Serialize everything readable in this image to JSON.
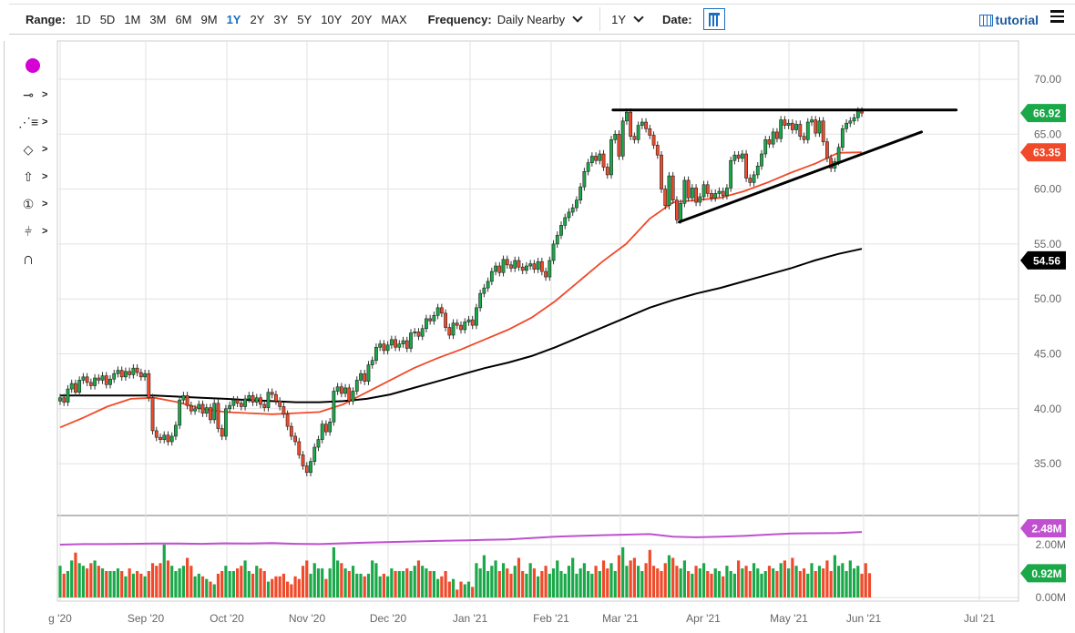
{
  "toolbar": {
    "range_label": "Range:",
    "ranges": [
      "1D",
      "5D",
      "1M",
      "3M",
      "6M",
      "9M",
      "1Y",
      "2Y",
      "3Y",
      "5Y",
      "10Y",
      "20Y",
      "MAX"
    ],
    "active_range": "1Y",
    "frequency_label": "Frequency:",
    "frequency_value": "Daily Nearby",
    "period_value": "1Y",
    "date_label": "Date:",
    "tutorial_label": "tutorial"
  },
  "sidebar": {
    "color_swatch": "#d400d4",
    "tools": [
      "line-segment-icon",
      "fibonacci-icon",
      "shape-icon",
      "arrow-up-icon",
      "numbered-annotation-icon",
      "measure-icon",
      "magnet-icon"
    ]
  },
  "chart_data": {
    "type": "candlestick",
    "x_ticks": [
      "g '20",
      "Sep '20",
      "Oct '20",
      "Nov '20",
      "Dec '20",
      "Jan '21",
      "Feb '21",
      "Mar '21",
      "Apr '21",
      "May '21",
      "Jun '21",
      "Jul '21"
    ],
    "y_ticks": [
      "35.00",
      "40.00",
      "45.00",
      "50.00",
      "55.00",
      "60.00",
      "65.00",
      "70.00"
    ],
    "ylim": [
      31.5,
      73.5
    ],
    "volume_ticks": [
      "0.00M",
      "2.00M"
    ],
    "volume_ylim": [
      0,
      3.2
    ],
    "grid": true,
    "colors": {
      "up": "#1aa849",
      "down": "#f04a2a",
      "ma50": "#f04a2a",
      "ma200": "#000000",
      "vol_ma": "#c050d0"
    },
    "closes": [
      41.0,
      40.6,
      41.8,
      42.3,
      41.5,
      42.6,
      42.9,
      42.4,
      42.1,
      42.8,
      42.6,
      43.0,
      42.2,
      42.7,
      43.2,
      43.5,
      42.9,
      43.4,
      43.1,
      43.7,
      43.3,
      42.9,
      43.2,
      41.0,
      38.0,
      37.4,
      37.2,
      37.6,
      37.0,
      37.5,
      38.5,
      40.8,
      41.2,
      40.3,
      39.8,
      40.0,
      40.4,
      39.6,
      40.1,
      39.0,
      40.5,
      38.2,
      37.5,
      40.0,
      40.3,
      40.8,
      40.5,
      40.2,
      40.9,
      41.2,
      40.6,
      41.0,
      40.4,
      40.1,
      41.5,
      41.3,
      40.7,
      40.2,
      39.5,
      38.4,
      37.5,
      37.0,
      35.8,
      34.8,
      34.2,
      35.2,
      36.5,
      37.2,
      38.6,
      37.9,
      38.8,
      41.6,
      42.0,
      41.4,
      41.9,
      40.7,
      41.6,
      42.6,
      43.2,
      42.5,
      44.0,
      44.4,
      45.6,
      45.9,
      45.3,
      45.8,
      46.3,
      45.6,
      45.9,
      46.2,
      45.5,
      46.9,
      47.0,
      46.6,
      47.3,
      48.2,
      48.0,
      48.5,
      49.2,
      48.7,
      47.4,
      46.7,
      47.8,
      47.6,
      47.2,
      47.9,
      48.1,
      47.6,
      49.2,
      50.5,
      51.0,
      51.6,
      52.5,
      53.0,
      52.4,
      53.6,
      53.1,
      52.8,
      53.5,
      52.9,
      52.6,
      53.0,
      53.2,
      52.7,
      53.4,
      52.5,
      52.0,
      53.5,
      55.0,
      55.8,
      56.7,
      57.4,
      57.9,
      58.3,
      59.0,
      60.2,
      61.6,
      62.4,
      63.0,
      62.6,
      63.2,
      62.0,
      61.3,
      64.5,
      65.0,
      63.0,
      66.2,
      67.0,
      64.8,
      64.5,
      65.8,
      66.1,
      65.5,
      64.9,
      64.0,
      63.1,
      60.0,
      58.5,
      61.2,
      59.0,
      57.2,
      58.7,
      60.8,
      59.2,
      60.1,
      58.8,
      59.3,
      60.4,
      59.6,
      59.2,
      59.6,
      59.8,
      59.4,
      60.1,
      62.6,
      63.1,
      62.8,
      63.2,
      61.0,
      60.6,
      61.3,
      62.1,
      63.2,
      64.5,
      64.1,
      65.2,
      64.6,
      66.3,
      65.8,
      66.0,
      65.4,
      65.9,
      64.8,
      64.5,
      66.1,
      66.3,
      65.1,
      66.2,
      64.3,
      62.8,
      61.9,
      62.5,
      63.8,
      65.5,
      66.0,
      66.2,
      66.5,
      67.1,
      66.92
    ],
    "volume_m": [
      1.2,
      0.9,
      1.0,
      1.4,
      1.7,
      1.3,
      1.2,
      1.1,
      1.3,
      1.4,
      1.2,
      1.1,
      1.0,
      1.0,
      1.0,
      1.1,
      1.0,
      0.8,
      1.1,
      0.9,
      1.0,
      0.9,
      0.8,
      1.0,
      1.3,
      1.2,
      1.3,
      2.0,
      1.4,
      1.2,
      1.0,
      1.1,
      1.2,
      1.5,
      1.2,
      0.8,
      0.9,
      0.8,
      0.7,
      0.6,
      0.5,
      0.9,
      1.0,
      1.2,
      1.0,
      1.0,
      1.1,
      1.2,
      1.4,
      1.0,
      0.9,
      1.2,
      1.1,
      1.0,
      0.6,
      0.7,
      0.8,
      0.8,
      0.9,
      0.6,
      0.5,
      0.8,
      0.7,
      1.2,
      1.4,
      0.9,
      1.3,
      1.1,
      1.1,
      0.7,
      1.1,
      1.9,
      1.4,
      1.3,
      1.1,
      1.0,
      1.2,
      0.9,
      0.9,
      0.8,
      0.9,
      1.4,
      1.3,
      0.8,
      0.9,
      0.8,
      1.1,
      1.0,
      1.0,
      1.0,
      1.1,
      1.0,
      1.2,
      1.4,
      1.2,
      1.1,
      1.0,
      1.0,
      0.7,
      0.8,
      1.0,
      0.6,
      0.7,
      0.3,
      0.6,
      0.5,
      0.6,
      0.4,
      1.3,
      1.1,
      1.6,
      1.0,
      1.2,
      1.4,
      1.0,
      1.3,
      1.1,
      0.9,
      1.2,
      1.5,
      1.0,
      0.9,
      1.3,
      1.1,
      0.8,
      1.0,
      1.2,
      0.9,
      1.1,
      1.4,
      1.0,
      0.9,
      1.2,
      1.5,
      0.9,
      1.1,
      1.3,
      1.0,
      0.9,
      1.2,
      1.0,
      1.4,
      1.1,
      1.3,
      1.0,
      1.6,
      1.9,
      1.2,
      1.4,
      1.5,
      1.2,
      1.0,
      1.3,
      1.8,
      1.2,
      1.1,
      1.0,
      1.3,
      1.6,
      1.5,
      1.2,
      1.1,
      1.4,
      1.0,
      0.9,
      1.2,
      1.1,
      1.3,
      1.0,
      0.9,
      1.1,
      1.0,
      0.8,
      1.2,
      1.0,
      0.9,
      1.4,
      1.1,
      1.2,
      1.0,
      1.3,
      1.1,
      0.9,
      1.0,
      1.2,
      1.1,
      1.0,
      1.3,
      1.4,
      1.1,
      1.5,
      1.2,
      1.0,
      1.1,
      0.9,
      1.3,
      1.0,
      1.2,
      1.1,
      1.4,
      1.0,
      1.6,
      1.2,
      1.3,
      1.0,
      1.4,
      1.1,
      1.2,
      0.9,
      1.3,
      0.92
    ],
    "ma50": [
      38.3,
      39.2,
      40.2,
      40.9,
      41.0,
      40.6,
      40.0,
      39.7,
      39.6,
      39.5,
      39.6,
      39.7,
      40.4,
      41.5,
      42.6,
      43.7,
      44.6,
      45.4,
      46.3,
      47.2,
      48.3,
      49.8,
      51.6,
      53.4,
      55.0,
      57.3,
      58.8,
      59.0,
      59.2,
      59.8,
      60.6,
      61.5,
      62.3,
      63.3,
      63.35
    ],
    "ma200": [
      41.2,
      41.2,
      41.2,
      41.2,
      41.2,
      41.1,
      41.0,
      40.9,
      40.8,
      40.7,
      40.6,
      40.6,
      40.7,
      40.9,
      41.3,
      41.9,
      42.5,
      43.1,
      43.7,
      44.2,
      44.8,
      45.6,
      46.5,
      47.4,
      48.3,
      49.2,
      49.9,
      50.5,
      51.0,
      51.6,
      52.2,
      52.8,
      53.5,
      54.1,
      54.56
    ],
    "vol_ma": [
      2.0,
      2.02,
      2.02,
      2.03,
      2.04,
      2.04,
      2.03,
      2.05,
      2.04,
      2.06,
      2.03,
      2.02,
      2.05,
      2.08,
      2.1,
      2.12,
      2.14,
      2.16,
      2.18,
      2.2,
      2.25,
      2.3,
      2.33,
      2.36,
      2.38,
      2.4,
      2.3,
      2.28,
      2.3,
      2.33,
      2.38,
      2.42,
      2.43,
      2.44,
      2.48
    ],
    "annotations": [
      {
        "type": "trendline",
        "from": [
          "2021-02-26",
          67.2
        ],
        "to": [
          "2021-06-25",
          67.2
        ]
      },
      {
        "type": "trendline",
        "from": [
          "2021-03-23",
          57.0
        ],
        "to": [
          "2021-06-16",
          65.2
        ]
      }
    ],
    "last_labels": [
      {
        "text": "66.92",
        "value": 66.92,
        "color": "#1aa849",
        "pane": "price"
      },
      {
        "text": "63.35",
        "value": 63.35,
        "color": "#f04a2a",
        "pane": "price"
      },
      {
        "text": "54.56",
        "value": 54.56,
        "color": "#000000",
        "pane": "price"
      },
      {
        "text": "2.48M",
        "value": 2.48,
        "color": "#c050d0",
        "pane": "volume"
      },
      {
        "text": "0.92M",
        "value": 0.92,
        "color": "#1aa849",
        "pane": "volume"
      }
    ]
  }
}
